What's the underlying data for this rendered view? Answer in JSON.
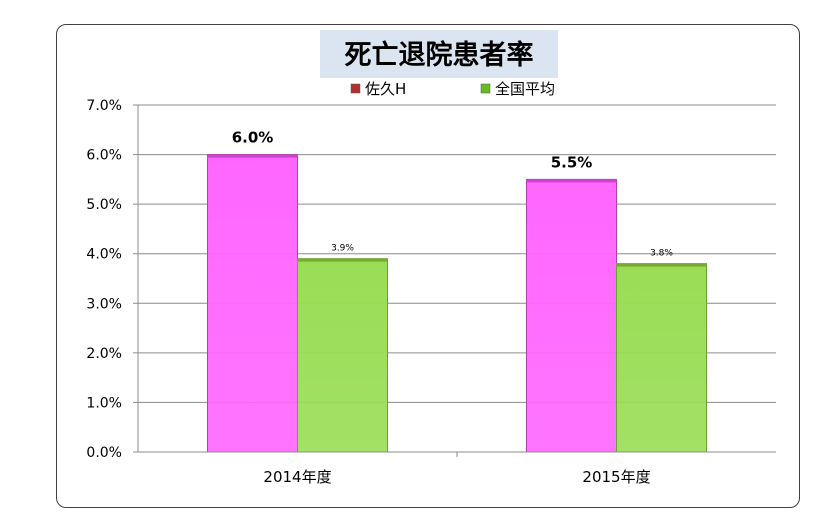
{
  "chart_data": {
    "type": "bar",
    "title": "死亡退院患者率",
    "categories": [
      "2014年度",
      "2015年度"
    ],
    "series": [
      {
        "name": "佐久H",
        "values": [
          6.0,
          5.5
        ],
        "labels": [
          "6.0%",
          "5.5%"
        ],
        "color": "#ff66ff",
        "legend_color": "#b03030"
      },
      {
        "name": "全国平均",
        "values": [
          3.9,
          3.8
        ],
        "labels": [
          "3.9%",
          "3.8%"
        ],
        "color": "#99dd55",
        "legend_color": "#66bb22"
      }
    ],
    "ylim": [
      0,
      7
    ],
    "yticks": [
      "0.0%",
      "1.0%",
      "2.0%",
      "3.0%",
      "4.0%",
      "5.0%",
      "6.0%",
      "7.0%"
    ],
    "grid": true,
    "legend": "top"
  }
}
